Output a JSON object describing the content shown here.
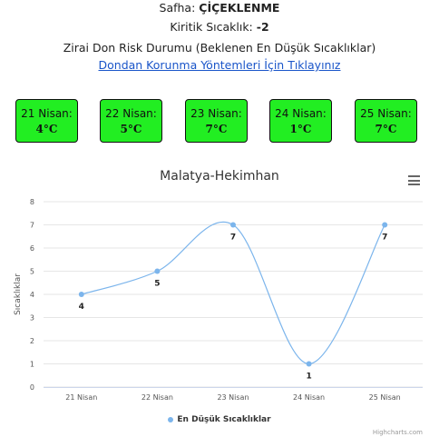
{
  "header": {
    "safha_label": "Safha:",
    "safha_value": "ÇİÇEKLENME",
    "kritik_label": "Kiritik Sıcaklık:",
    "kritik_value": "-2",
    "risk_title": "Zirai Don Risk Durumu (Beklenen En Düşük Sıcaklıklar)",
    "link_text": "Dondan Korunma Yöntemleri İçin Tıklayınız"
  },
  "days": [
    {
      "label": "21 Nisan:",
      "temp": "4°C"
    },
    {
      "label": "22 Nisan:",
      "temp": "5°C"
    },
    {
      "label": "23 Nisan:",
      "temp": "7°C"
    },
    {
      "label": "24 Nisan:",
      "temp": "1°C"
    },
    {
      "label": "25 Nisan:",
      "temp": "7°C"
    }
  ],
  "colors": {
    "box_green": "#22ee22",
    "series": "#7cb5ec"
  },
  "chart_data": {
    "type": "line",
    "title": "Malatya-Hekimhan",
    "categories": [
      "21 Nisan",
      "22 Nisan",
      "23 Nisan",
      "24 Nisan",
      "25 Nisan"
    ],
    "series": [
      {
        "name": "En Düşük Sıcaklıklar",
        "values": [
          4,
          5,
          7,
          1,
          7
        ]
      }
    ],
    "ylabel": "Sıcaklıklar",
    "xlabel": "",
    "ylim": [
      0,
      8
    ],
    "yticks": [
      0,
      1,
      2,
      3,
      4,
      5,
      6,
      7,
      8
    ],
    "grid": true,
    "smooth": true,
    "legend": "bottom-center",
    "credits": "Highcharts.com"
  }
}
